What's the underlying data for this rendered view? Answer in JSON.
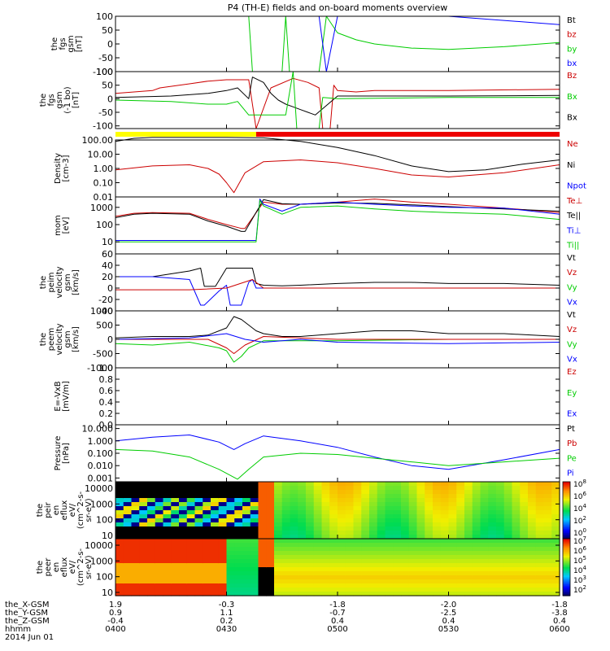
{
  "title": "P4 (TH-E) fields and on-board moments overview",
  "colors": {
    "black": "#000000",
    "red": "#cc0000",
    "green": "#00cc00",
    "blue": "#0000ff",
    "yellow": "#ffff00",
    "mode_red": "#ee0000"
  },
  "mode_bar": {
    "yellow_until": "0438",
    "red_from": "0438"
  },
  "chart_data": [
    {
      "type": "line",
      "id": "fgs",
      "ylabel_lines": [
        "the",
        "fgs",
        "gsm",
        "[nT]"
      ],
      "yticks": [
        "100",
        "50",
        "0",
        "-50",
        "-100"
      ],
      "ylim": [
        -100,
        100
      ],
      "legend": [
        {
          "label": "Bt",
          "color": "#000000"
        },
        {
          "label": "bz",
          "color": "#cc0000"
        },
        {
          "label": "by",
          "color": "#00cc00"
        },
        {
          "label": "bx",
          "color": "#0000ff"
        }
      ],
      "series": [
        {
          "color": "#00cc00",
          "x": [
            "0436",
            "0437",
            "0445",
            "0446",
            "0447",
            "0455",
            "0457",
            "0459",
            "0500",
            "0505",
            "0510",
            "0520",
            "0530",
            "0545",
            "0600"
          ],
          "y": [
            100,
            -100,
            -100,
            100,
            -100,
            -100,
            100,
            60,
            40,
            15,
            0,
            -15,
            -20,
            -10,
            5
          ]
        },
        {
          "color": "#0000ff",
          "x": [
            "0455",
            "0457",
            "0500",
            "0530",
            "0600"
          ],
          "y": [
            100,
            -100,
            100,
            100,
            70
          ]
        }
      ]
    },
    {
      "type": "line",
      "id": "fgs_gse",
      "ylabel_lines": [
        "the",
        "fgs",
        "gsm",
        "(-1 bo)",
        "[nT]"
      ],
      "yticks": [
        "100",
        "50",
        "0",
        "-50",
        "-100"
      ],
      "ylim": [
        -110,
        100
      ],
      "legend": [
        {
          "label": "Bz",
          "color": "#cc0000"
        },
        {
          "label": "Bx",
          "color": "#00cc00"
        },
        {
          "label": "Bx",
          "color": "#000000"
        }
      ],
      "series": [
        {
          "color": "#cc0000",
          "x": [
            "0400",
            "0410",
            "0412",
            "0420",
            "0425",
            "0430",
            "0436",
            "0438",
            "0442",
            "0448",
            "0452",
            "0455",
            "0456",
            "0458",
            "0459",
            "0500",
            "0505",
            "0510",
            "0530",
            "0600"
          ],
          "y": [
            20,
            30,
            40,
            55,
            65,
            70,
            70,
            -110,
            40,
            75,
            60,
            40,
            -110,
            -110,
            50,
            30,
            25,
            30,
            30,
            35
          ]
        },
        {
          "color": "#000000",
          "x": [
            "0400",
            "0415",
            "0425",
            "0430",
            "0433",
            "0436",
            "0437",
            "0440",
            "0442",
            "0444",
            "0446",
            "0448",
            "0450",
            "0452",
            "0454",
            "0500",
            "0530",
            "0600"
          ],
          "y": [
            5,
            10,
            20,
            30,
            40,
            0,
            80,
            60,
            20,
            -5,
            -20,
            -30,
            -40,
            -50,
            -60,
            10,
            10,
            12
          ]
        },
        {
          "color": "#00cc00",
          "x": [
            "0400",
            "0415",
            "0425",
            "0430",
            "0433",
            "0436",
            "0446",
            "0448",
            "0449",
            "0455",
            "0456",
            "0500",
            "0530",
            "0600"
          ],
          "y": [
            -5,
            -10,
            -20,
            -20,
            -10,
            -60,
            -60,
            100,
            -110,
            -110,
            5,
            0,
            5,
            5
          ]
        }
      ]
    },
    {
      "type": "line",
      "id": "density",
      "ylabel_lines": [
        "Density",
        "[cm-3]"
      ],
      "yticks": [
        "100.00",
        "10.00",
        "1.00",
        "0.10",
        "0.01"
      ],
      "ylim": [
        0.01,
        100
      ],
      "yscale": "log",
      "legend": [
        {
          "label": "Ne",
          "color": "#cc0000"
        },
        {
          "label": "Ni",
          "color": "#000000"
        },
        {
          "label": "Npot",
          "color": "#0000ff"
        }
      ],
      "series": [
        {
          "color": "#000000",
          "x": [
            "0400",
            "0405",
            "0410",
            "0420",
            "0430",
            "0440",
            "0450",
            "0500",
            "0510",
            "0520",
            "0530",
            "0540",
            "0550",
            "0600"
          ],
          "y": [
            80,
            130,
            150,
            150,
            150,
            140,
            80,
            30,
            8,
            1.5,
            0.6,
            0.8,
            2,
            4
          ]
        },
        {
          "color": "#cc0000",
          "x": [
            "0400",
            "0410",
            "0420",
            "0425",
            "0428",
            "0430",
            "0432",
            "0435",
            "0440",
            "0450",
            "0500",
            "0510",
            "0520",
            "0530",
            "0545",
            "0600"
          ],
          "y": [
            0.8,
            1.5,
            1.8,
            1,
            0.4,
            0.1,
            0.02,
            0.5,
            3,
            4,
            2.5,
            1,
            0.35,
            0.25,
            0.5,
            1.8
          ]
        }
      ]
    },
    {
      "type": "line",
      "id": "temperature",
      "ylabel_lines": [
        "mom",
        "[eV]"
      ],
      "yticks": [
        "1000",
        "100",
        "10"
      ],
      "ylim": [
        2,
        4000
      ],
      "yscale": "log",
      "legend": [
        {
          "label": "Te⊥",
          "color": "#cc0000"
        },
        {
          "label": "Te||",
          "color": "#000000"
        },
        {
          "label": "Ti⊥",
          "color": "#0000ff"
        },
        {
          "label": "Ti||",
          "color": "#00cc00"
        }
      ],
      "series": [
        {
          "color": "#cc0000",
          "x": [
            "0400",
            "0405",
            "0410",
            "0420",
            "0425",
            "0430",
            "0434",
            "0435",
            "0440",
            "0445",
            "0450",
            "0500",
            "0510",
            "0520",
            "0530",
            "0545",
            "0600"
          ],
          "y": [
            300,
            450,
            500,
            450,
            200,
            100,
            60,
            60,
            2000,
            1500,
            1500,
            2000,
            3000,
            2000,
            1500,
            900,
            500
          ]
        },
        {
          "color": "#000000",
          "x": [
            "0400",
            "0405",
            "0410",
            "0420",
            "0425",
            "0430",
            "0434",
            "0435",
            "0440",
            "0445",
            "0450",
            "0500",
            "0510",
            "0520",
            "0530",
            "0545",
            "0600"
          ],
          "y": [
            250,
            400,
            450,
            400,
            160,
            80,
            40,
            40,
            2800,
            1600,
            1500,
            1800,
            1700,
            1400,
            1100,
            800,
            600
          ]
        },
        {
          "color": "#0000ff",
          "x": [
            "0400",
            "0410",
            "0420",
            "0434",
            "0438",
            "0439",
            "0440",
            "0445",
            "0450",
            "0500",
            "0510",
            "0520",
            "0530",
            "0545",
            "0600"
          ],
          "y": [
            12,
            12,
            12,
            12,
            12,
            3000,
            1500,
            600,
            1500,
            2000,
            1500,
            1200,
            1000,
            900,
            400
          ]
        },
        {
          "color": "#00cc00",
          "x": [
            "0400",
            "0410",
            "0420",
            "0434",
            "0438",
            "0439",
            "0440",
            "0445",
            "0450",
            "0500",
            "0510",
            "0520",
            "0530",
            "0545",
            "0600"
          ],
          "y": [
            10,
            10,
            10,
            10,
            10,
            2500,
            1200,
            400,
            1000,
            1200,
            800,
            600,
            500,
            400,
            200
          ]
        }
      ]
    },
    {
      "type": "line",
      "id": "ion_velocity",
      "ylabel_lines": [
        "the",
        "peim",
        "velocity",
        "gsm",
        "[km/s]"
      ],
      "yticks": [
        "60",
        "40",
        "20",
        "0",
        "-20",
        "-40"
      ],
      "ylim": [
        -40,
        60
      ],
      "legend": [
        {
          "label": "Vt",
          "color": "#000000"
        },
        {
          "label": "Vz",
          "color": "#cc0000"
        },
        {
          "label": "Vy",
          "color": "#00cc00"
        },
        {
          "label": "Vx",
          "color": "#0000ff"
        }
      ],
      "series": [
        {
          "color": "#000000",
          "x": [
            "0400",
            "0410",
            "0420",
            "0423",
            "0424",
            "0427",
            "0430",
            "0431",
            "0434",
            "0437",
            "0438",
            "0440",
            "0445",
            "0450",
            "0500",
            "0510",
            "0520",
            "0530",
            "0545",
            "0600"
          ],
          "y": [
            20,
            20,
            30,
            35,
            3,
            3,
            35,
            35,
            35,
            35,
            8,
            5,
            4,
            5,
            8,
            10,
            10,
            8,
            8,
            5
          ]
        },
        {
          "color": "#0000ff",
          "x": [
            "0400",
            "0410",
            "0420",
            "0423",
            "0424",
            "0428",
            "0430",
            "0431",
            "0434",
            "0436",
            "0437",
            "0438",
            "0440",
            "0500",
            "0530",
            "0600"
          ],
          "y": [
            20,
            20,
            15,
            -30,
            -30,
            -5,
            5,
            -30,
            -30,
            10,
            15,
            0,
            0,
            0,
            0,
            0
          ]
        },
        {
          "color": "#cc0000",
          "x": [
            "0400",
            "0420",
            "0430",
            "0437",
            "0440",
            "0500",
            "0600"
          ],
          "y": [
            -3,
            -3,
            0,
            15,
            0,
            0,
            0
          ]
        }
      ]
    },
    {
      "type": "line",
      "id": "electron_velocity",
      "ylabel_lines": [
        "the",
        "peem",
        "velocity",
        "gsm",
        "[km/s]"
      ],
      "yticks": [
        "1000",
        "500",
        "0",
        "-500",
        "-1000"
      ],
      "ylim": [
        -1000,
        1000
      ],
      "legend": [
        {
          "label": "Vt",
          "color": "#000000"
        },
        {
          "label": "Vz",
          "color": "#cc0000"
        },
        {
          "label": "Vy",
          "color": "#00cc00"
        },
        {
          "label": "Vx",
          "color": "#0000ff"
        }
      ],
      "series": [
        {
          "color": "#000000",
          "x": [
            "0400",
            "0410",
            "0420",
            "0425",
            "0430",
            "0432",
            "0434",
            "0436",
            "0438",
            "0440",
            "0445",
            "0450",
            "0500",
            "0510",
            "0520",
            "0530",
            "0545",
            "0600"
          ],
          "y": [
            50,
            100,
            100,
            150,
            400,
            800,
            700,
            500,
            300,
            200,
            100,
            100,
            200,
            300,
            300,
            200,
            200,
            100
          ]
        },
        {
          "color": "#00cc00",
          "x": [
            "0400",
            "0410",
            "0420",
            "0428",
            "0430",
            "0432",
            "0434",
            "0436",
            "0440",
            "0450",
            "0500",
            "0530",
            "0600"
          ],
          "y": [
            -150,
            -200,
            -100,
            -300,
            -400,
            -800,
            -600,
            -300,
            -50,
            -50,
            -50,
            0,
            0
          ]
        },
        {
          "color": "#cc0000",
          "x": [
            "0400",
            "0425",
            "0430",
            "0432",
            "0435",
            "0440",
            "0500",
            "0600"
          ],
          "y": [
            0,
            0,
            -300,
            -500,
            -200,
            100,
            0,
            0
          ]
        },
        {
          "color": "#0000ff",
          "x": [
            "0400",
            "0420",
            "0430",
            "0435",
            "0440",
            "0450",
            "0500",
            "0530",
            "0600"
          ],
          "y": [
            0,
            50,
            200,
            0,
            -100,
            0,
            -100,
            -150,
            -100
          ]
        }
      ]
    },
    {
      "type": "line",
      "id": "efield",
      "ylabel_lines": [
        "E=-VxB",
        "[mV/m]"
      ],
      "yticks": [
        "1.0",
        "0.8",
        "0.6",
        "0.4",
        "0.2",
        "0.0"
      ],
      "ylim": [
        0,
        1
      ],
      "legend": [
        {
          "label": "Ez",
          "color": "#cc0000"
        },
        {
          "label": "Ey",
          "color": "#00cc00"
        },
        {
          "label": "Ex",
          "color": "#0000ff"
        }
      ],
      "series": []
    },
    {
      "type": "line",
      "id": "pressure",
      "ylabel_lines": [
        "Pressure",
        "[nPa]"
      ],
      "yticks": [
        "10.000",
        "1.000",
        "0.100",
        "0.010",
        "0.001"
      ],
      "ylim": [
        0.0005,
        20
      ],
      "yscale": "log",
      "legend": [
        {
          "label": "Pt",
          "color": "#000000"
        },
        {
          "label": "Pb",
          "color": "#cc0000"
        },
        {
          "label": "Pe",
          "color": "#00cc00"
        },
        {
          "label": "Pi",
          "color": "#0000ff"
        }
      ],
      "series": [
        {
          "color": "#0000ff",
          "x": [
            "0400",
            "0410",
            "0420",
            "0428",
            "0432",
            "0435",
            "0440",
            "0450",
            "0500",
            "0510",
            "0520",
            "0530",
            "0545",
            "0600"
          ],
          "y": [
            1,
            2,
            3,
            0.8,
            0.2,
            0.6,
            2.5,
            1,
            0.3,
            0.05,
            0.01,
            0.005,
            0.03,
            0.2
          ]
        },
        {
          "color": "#00cc00",
          "x": [
            "0400",
            "0410",
            "0420",
            "0428",
            "0433",
            "0436",
            "0440",
            "0450",
            "0500",
            "0510",
            "0520",
            "0530",
            "0545",
            "0600"
          ],
          "y": [
            0.2,
            0.15,
            0.05,
            0.005,
            0.0008,
            0.005,
            0.05,
            0.1,
            0.08,
            0.04,
            0.02,
            0.01,
            0.02,
            0.04
          ]
        }
      ]
    },
    {
      "type": "heatmap",
      "id": "ion_spectrogram",
      "ylabel_lines": [
        "the",
        "peir",
        "en",
        "eflux",
        "eV/",
        "(cm^2-s-",
        "sr-eV)"
      ],
      "yticks": [
        "10000",
        "1000",
        "100",
        "10"
      ],
      "colorbar_ticks": [
        "10^8",
        "10^6",
        "10^4",
        "10^2",
        "10^0"
      ]
    },
    {
      "type": "heatmap",
      "id": "electron_spectrogram",
      "ylabel_lines": [
        "the",
        "peer",
        "en",
        "eflux",
        "eV/",
        "(cm^2-s-",
        "sr-eV)"
      ],
      "yticks": [
        "10000",
        "1000",
        "100",
        "10"
      ],
      "colorbar_ticks": [
        "10^7",
        "10^6",
        "10^5",
        "10^4",
        "10^3",
        "10^2"
      ]
    }
  ],
  "xaxis": {
    "row_labels": [
      "the_X-GSM",
      "the_Y-GSM",
      "the_Z-GSM",
      "hhmm",
      "2014 Jun 01"
    ],
    "ticks": [
      {
        "time": "0400",
        "x_gsm": "1.9",
        "y_gsm": "0.9",
        "z_gsm": "-0.4"
      },
      {
        "time": "0430",
        "x_gsm": "-0.3",
        "y_gsm": "1.1",
        "z_gsm": "0.2"
      },
      {
        "time": "0500",
        "x_gsm": "-1.8",
        "y_gsm": "-0.7",
        "z_gsm": "0.4"
      },
      {
        "time": "0530",
        "x_gsm": "-2.0",
        "y_gsm": "-2.5",
        "z_gsm": "0.4"
      },
      {
        "time": "0600",
        "x_gsm": "-1.8",
        "y_gsm": "-3.8",
        "z_gsm": "0.4"
      }
    ]
  }
}
